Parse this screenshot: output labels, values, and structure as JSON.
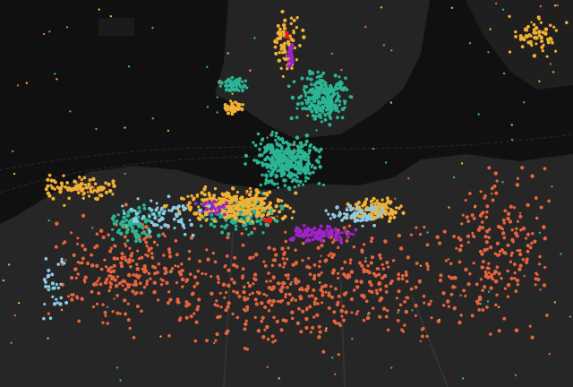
{
  "map": {
    "layers": [
      {
        "color": "#e8643c"
      },
      {
        "color": "#2bb594"
      },
      {
        "color": "#f2b134"
      },
      {
        "color": "#a023c9"
      },
      {
        "color": "#8ecbe6"
      },
      {
        "color": "#e3211c"
      }
    ]
  }
}
